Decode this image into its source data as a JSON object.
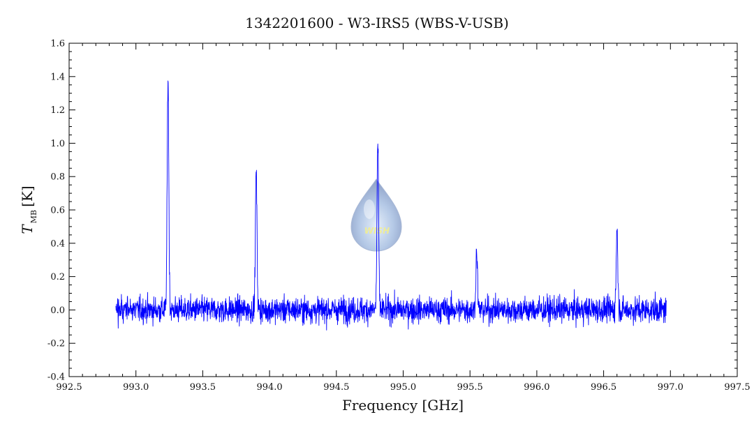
{
  "chart_data": {
    "type": "line",
    "title": "1342201600 - W3-IRS5 (WBS-V-USB)",
    "xlabel": "Frequency [GHz]",
    "ylabel": {
      "main": "T",
      "sub": "MB",
      "unit": "[K]"
    },
    "xlim": [
      992.5,
      997.5
    ],
    "ylim": [
      -0.4,
      1.6
    ],
    "xticks": [
      992.5,
      993.0,
      993.5,
      994.0,
      994.5,
      995.0,
      995.5,
      996.0,
      996.5,
      997.0,
      997.5
    ],
    "xtick_labels": [
      "992.5",
      "993.0",
      "993.5",
      "994.0",
      "994.5",
      "995.0",
      "995.5",
      "996.0",
      "996.5",
      "997.0",
      "997.5"
    ],
    "yticks": [
      -0.4,
      -0.2,
      0.0,
      0.2,
      0.4,
      0.6,
      0.8,
      1.0,
      1.2,
      1.4,
      1.6
    ],
    "ytick_labels": [
      "-0.4",
      "-0.2",
      "0.0",
      "0.2",
      "0.4",
      "0.6",
      "0.8",
      "1.0",
      "1.2",
      "1.4",
      "1.6"
    ],
    "grid": false,
    "line_color": "#0000ff",
    "series": [
      {
        "x_range": [
          992.85,
          996.97
        ],
        "baseline_noise_rms": 0.06,
        "peaks": [
          {
            "x": 993.24,
            "y": 1.4
          },
          {
            "x": 993.9,
            "y": 0.83
          },
          {
            "x": 994.81,
            "y": 1.0
          },
          {
            "x": 995.55,
            "y": 0.36
          },
          {
            "x": 996.6,
            "y": 0.49
          }
        ]
      }
    ]
  },
  "watermark": {
    "label": "WISH"
  }
}
